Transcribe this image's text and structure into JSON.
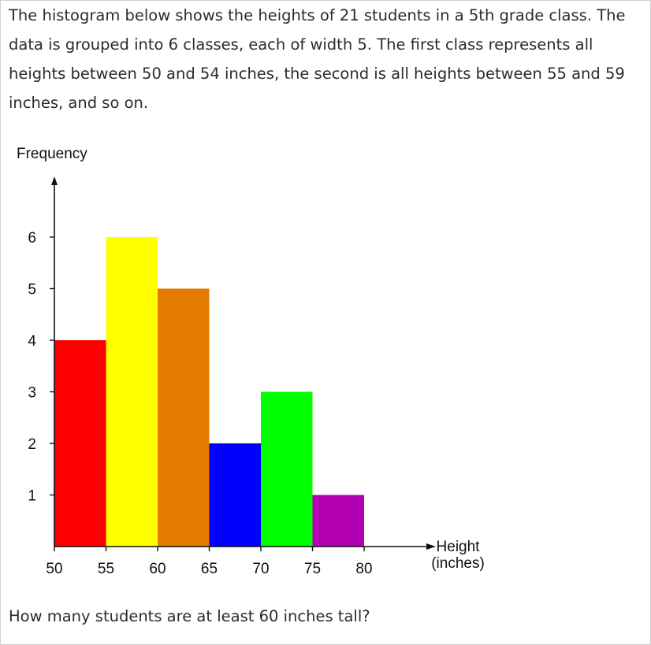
{
  "intro_text": "The histogram below shows the heights of 21 students in a 5th grade class. The data is grouped into 6 classes, each of width 5. The first class represents all heights between 50 and 54 inches, the second is all heights between 55 and 59 inches, and so on.",
  "question_text": "How many students are at least 60 inches tall?",
  "chart_data": {
    "type": "bar",
    "title": "",
    "ylabel": "Frequency",
    "xlabel_lines": [
      "Height",
      "(inches)"
    ],
    "x_ticks": [
      "50",
      "55",
      "60",
      "65",
      "70",
      "75",
      "80"
    ],
    "y_ticks": [
      "1",
      "2",
      "3",
      "4",
      "5",
      "6"
    ],
    "bins": [
      {
        "start": 50,
        "end": 55,
        "value": 4,
        "color": "#ff0000"
      },
      {
        "start": 55,
        "end": 60,
        "value": 6,
        "color": "#ffff00"
      },
      {
        "start": 60,
        "end": 65,
        "value": 5,
        "color": "#e57a00"
      },
      {
        "start": 65,
        "end": 70,
        "value": 2,
        "color": "#0000ff"
      },
      {
        "start": 70,
        "end": 75,
        "value": 3,
        "color": "#00ff00"
      },
      {
        "start": 75,
        "end": 80,
        "value": 1,
        "color": "#b300b3"
      }
    ],
    "xlim": [
      50,
      80
    ],
    "ylim": [
      0,
      6
    ],
    "grid": false,
    "legend": "none"
  }
}
